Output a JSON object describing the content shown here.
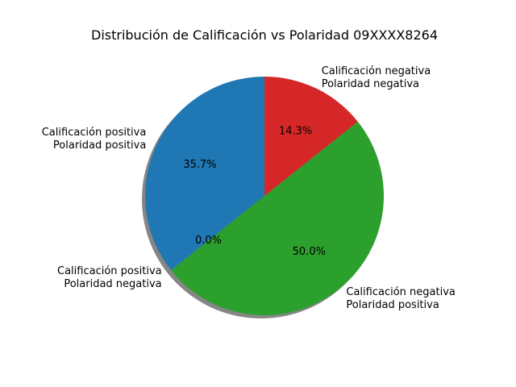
{
  "chart_data": {
    "type": "pie",
    "title": "Distribución de Calificación vs Polaridad 09XXXX8264",
    "slices": [
      {
        "label": [
          "Calificación positiva",
          "Polaridad positiva"
        ],
        "value": 35.7,
        "pct_label": "35.7%",
        "color": "#1f77b4"
      },
      {
        "label": [
          "Calificación positiva",
          "Polaridad negativa"
        ],
        "value": 0.0,
        "pct_label": "0.0%",
        "color": "#ff7f0e"
      },
      {
        "label": [
          "Calificación negativa",
          "Polaridad positiva"
        ],
        "value": 50.0,
        "pct_label": "50.0%",
        "color": "#2ca02c"
      },
      {
        "label": [
          "Calificación negativa",
          "Polaridad negativa"
        ],
        "value": 14.3,
        "pct_label": "14.3%",
        "color": "#d62728"
      }
    ],
    "start_angle_deg": 90,
    "direction": "counterclockwise",
    "shadow": true,
    "legend": false
  }
}
